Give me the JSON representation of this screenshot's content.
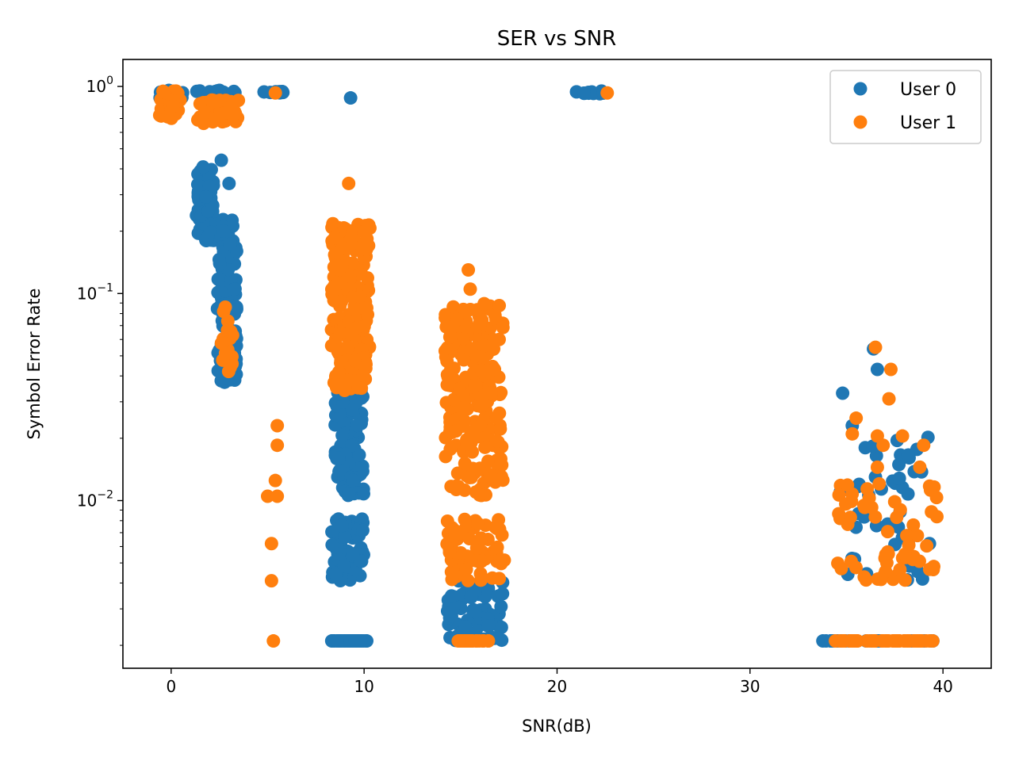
{
  "chart_data": {
    "type": "scatter",
    "title": "SER vs SNR",
    "xlabel": "SNR(dB)",
    "ylabel": "Symbol Error Rate",
    "xlim": [
      -2.5,
      42.5
    ],
    "ylim": [
      0.00155,
      1.35
    ],
    "yscale": "log",
    "x_ticks": [
      0,
      10,
      20,
      30,
      40
    ],
    "x_tick_labels": [
      "0",
      "10",
      "20",
      "30",
      "40"
    ],
    "y_ticks": [
      1,
      0.1,
      0.01
    ],
    "y_tick_labels": [
      {
        "base": "10",
        "exp": "0"
      },
      {
        "base": "10",
        "exp": "−1"
      },
      {
        "base": "10",
        "exp": "−2"
      }
    ],
    "grid": false,
    "legend": {
      "position": "upper-right"
    },
    "series": [
      {
        "name": "User 0",
        "color": "#1f77b4",
        "clusters": [
          {
            "x": [
              -0.6,
              0.6
            ],
            "y": [
              0.88,
              0.96
            ],
            "n": 14
          },
          {
            "x": [
              1.3,
              3.4
            ],
            "y": [
              0.9,
              0.96
            ],
            "n": 16
          },
          {
            "x": [
              1.3,
              2.2
            ],
            "y": [
              0.18,
              0.42
            ],
            "n": 90
          },
          {
            "x": [
              2.4,
              3.4
            ],
            "y": [
              0.037,
              0.23
            ],
            "n": 140
          },
          {
            "x": [
              4.8,
              5.9
            ],
            "y": [
              0.92,
              0.95
            ],
            "n": 8
          },
          {
            "x": [
              8.5,
              10.0
            ],
            "y": [
              0.0105,
              0.05
            ],
            "n": 160
          },
          {
            "x": [
              8.3,
              10.0
            ],
            "y": [
              0.0041,
              0.0083
            ],
            "n": 60
          },
          {
            "x": [
              8.3,
              10.2
            ],
            "y": [
              0.0021,
              0.0021
            ],
            "n": 40
          },
          {
            "x": [
              20.9,
              22.6
            ],
            "y": [
              0.92,
              0.95
            ],
            "n": 12
          },
          {
            "x": [
              14.2,
              17.2
            ],
            "y": [
              0.0021,
              0.0041
            ],
            "n": 60
          },
          {
            "x": [
              34.5,
              39.5
            ],
            "y": [
              0.0041,
              0.023
            ],
            "n": 40
          },
          {
            "x": [
              33.6,
              39.6
            ],
            "y": [
              0.0021,
              0.0021
            ],
            "n": 40
          }
        ],
        "points": [
          {
            "x": 2.6,
            "y": 0.44
          },
          {
            "x": 3.0,
            "y": 0.34
          },
          {
            "x": 9.3,
            "y": 0.88
          },
          {
            "x": 34.8,
            "y": 0.033
          },
          {
            "x": 36.4,
            "y": 0.054
          },
          {
            "x": 36.6,
            "y": 0.043
          },
          {
            "x": 35.3,
            "y": 0.023
          },
          {
            "x": 36.5,
            "y": 0.013
          },
          {
            "x": 37.8,
            "y": 0.0166
          },
          {
            "x": 38.2,
            "y": 0.0166
          },
          {
            "x": 39.3,
            "y": 0.0062
          }
        ]
      },
      {
        "name": "User 1",
        "color": "#ff7f0e",
        "clusters": [
          {
            "x": [
              -0.6,
              0.6
            ],
            "y": [
              0.7,
              0.95
            ],
            "n": 30
          },
          {
            "x": [
              1.3,
              3.5
            ],
            "y": [
              0.66,
              0.86
            ],
            "n": 40
          },
          {
            "x": [
              2.6,
              3.2
            ],
            "y": [
              0.042,
              0.086
            ],
            "n": 18
          },
          {
            "x": [
              8.3,
              10.3
            ],
            "y": [
              0.034,
              0.22
            ],
            "n": 230
          },
          {
            "x": [
              14.2,
              17.2
            ],
            "y": [
              0.0105,
              0.09
            ],
            "n": 220
          },
          {
            "x": [
              14.3,
              17.3
            ],
            "y": [
              0.0041,
              0.0083
            ],
            "n": 70
          },
          {
            "x": [
              14.8,
              16.6
            ],
            "y": [
              0.0021,
              0.0021
            ],
            "n": 25
          },
          {
            "x": [
              34.5,
              39.8
            ],
            "y": [
              0.0041,
              0.0125
            ],
            "n": 60
          },
          {
            "x": [
              34.4,
              39.6
            ],
            "y": [
              0.0021,
              0.0021
            ],
            "n": 50
          }
        ],
        "points": [
          {
            "x": 5.4,
            "y": 0.93
          },
          {
            "x": 22.6,
            "y": 0.93
          },
          {
            "x": 9.2,
            "y": 0.34
          },
          {
            "x": 15.4,
            "y": 0.13
          },
          {
            "x": 15.5,
            "y": 0.105
          },
          {
            "x": 5.0,
            "y": 0.0105
          },
          {
            "x": 5.5,
            "y": 0.0105
          },
          {
            "x": 5.4,
            "y": 0.0125
          },
          {
            "x": 5.5,
            "y": 0.0185
          },
          {
            "x": 5.5,
            "y": 0.023
          },
          {
            "x": 5.2,
            "y": 0.0062
          },
          {
            "x": 5.2,
            "y": 0.0041
          },
          {
            "x": 5.3,
            "y": 0.0021
          },
          {
            "x": 36.5,
            "y": 0.055
          },
          {
            "x": 37.3,
            "y": 0.043
          },
          {
            "x": 37.2,
            "y": 0.031
          },
          {
            "x": 35.5,
            "y": 0.025
          },
          {
            "x": 35.3,
            "y": 0.021
          },
          {
            "x": 36.6,
            "y": 0.0205
          },
          {
            "x": 37.9,
            "y": 0.0205
          },
          {
            "x": 36.9,
            "y": 0.0185
          },
          {
            "x": 39.0,
            "y": 0.0185
          },
          {
            "x": 36.6,
            "y": 0.0145
          },
          {
            "x": 38.8,
            "y": 0.0145
          },
          {
            "x": 35.2,
            "y": 0.0083
          },
          {
            "x": 37.6,
            "y": 0.0083
          }
        ]
      }
    ]
  }
}
